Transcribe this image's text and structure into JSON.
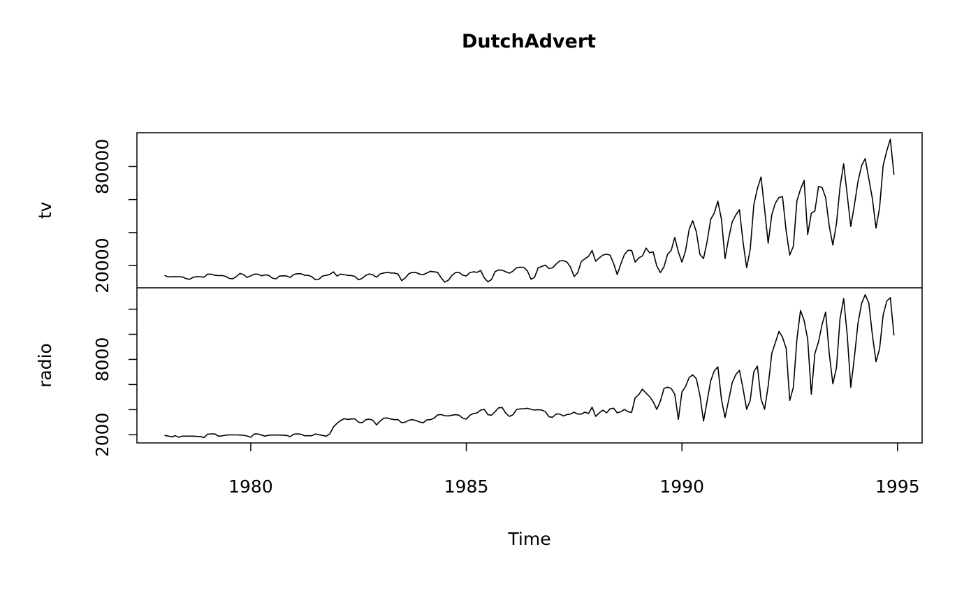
{
  "chart_data": {
    "type": "line",
    "title": "DutchAdvert",
    "xlabel": "Time",
    "start": [
      1978,
      1
    ],
    "frequency": 12,
    "xlim": [
      1977.36,
      1995.57
    ],
    "x_ticks": [
      1980,
      1985,
      1990,
      1995
    ],
    "x_tick_labels": [
      "1980",
      "1985",
      "1990",
      "1995"
    ],
    "grid": false,
    "legend": "none",
    "line_color": "#000000",
    "panels": [
      {
        "ylabel": "tv",
        "ylim": [
          6500,
          100500
        ],
        "y_ticks": [
          20000,
          40000,
          60000,
          80000
        ],
        "y_tick_labels": [
          {
            "value": 20000,
            "text": "20000"
          },
          {
            "value": 80000,
            "text": "80000"
          }
        ],
        "values": [
          14080,
          13100,
          13230,
          13230,
          13230,
          13100,
          12100,
          11670,
          12940,
          13230,
          13230,
          12940,
          14780,
          14780,
          14080,
          13940,
          13940,
          13500,
          12240,
          11950,
          13370,
          15210,
          14500,
          12800,
          13800,
          14780,
          14780,
          13800,
          14360,
          14080,
          12380,
          11950,
          13650,
          13800,
          13650,
          12800,
          14640,
          15070,
          15070,
          14080,
          14080,
          13230,
          11390,
          11810,
          13650,
          14080,
          14640,
          16200,
          13650,
          14780,
          14500,
          14080,
          13940,
          13370,
          11390,
          12240,
          14080,
          14920,
          14360,
          12940,
          14920,
          15490,
          15910,
          15490,
          15490,
          14780,
          10800,
          12520,
          15070,
          15910,
          15770,
          14780,
          14500,
          15490,
          16480,
          16200,
          15910,
          12520,
          9990,
          11100,
          14080,
          15770,
          15770,
          14220,
          13650,
          15770,
          16200,
          15910,
          17040,
          12520,
          10130,
          11530,
          16340,
          17320,
          17180,
          16200,
          15350,
          16620,
          18730,
          19020,
          18870,
          16760,
          11670,
          12940,
          18590,
          19440,
          20290,
          18170,
          18590,
          20990,
          22820,
          22960,
          22110,
          19020,
          13370,
          15630,
          22540,
          24080,
          25640,
          29160,
          22540,
          24650,
          26340,
          26900,
          26340,
          21100,
          14500,
          21100,
          26800,
          29200,
          29200,
          22100,
          24650,
          25800,
          30600,
          27750,
          28300,
          19700,
          15750,
          19300,
          26800,
          29200,
          37000,
          28200,
          22100,
          28900,
          41850,
          47200,
          40450,
          26800,
          24230,
          34500,
          47900,
          51850,
          59050,
          47900,
          24230,
          36650,
          46500,
          50750,
          53850,
          34500,
          18700,
          29600,
          56800,
          66650,
          73700,
          54250,
          33550,
          50750,
          57800,
          61300,
          61750,
          40850,
          26350,
          31700,
          59200,
          66250,
          71600,
          38750,
          51700,
          53100,
          67950,
          67250,
          61300,
          43700,
          32400,
          45400,
          67650,
          81700,
          62700,
          43700,
          56800,
          70900,
          80600,
          84850,
          72600,
          60600,
          42700,
          55000,
          80600,
          89500,
          96560,
          75000
        ]
      },
      {
        "ylabel": "radio",
        "ylim": [
          1350,
          13700
        ],
        "y_ticks": [
          2000,
          4000,
          6000,
          8000,
          10000,
          12000
        ],
        "y_tick_labels": [
          {
            "value": 2000,
            "text": "2000"
          },
          {
            "value": 8000,
            "text": "8000"
          }
        ],
        "values": [
          1945,
          1900,
          1833,
          1925,
          1800,
          1890,
          1890,
          1890,
          1890,
          1870,
          1860,
          1780,
          2050,
          2060,
          2070,
          1890,
          1910,
          1970,
          1990,
          1990,
          1990,
          1980,
          1960,
          1900,
          1800,
          2070,
          2060,
          1980,
          1890,
          1970,
          1980,
          1980,
          1980,
          1970,
          1945,
          1850,
          2050,
          2070,
          2040,
          1925,
          1925,
          1925,
          2070,
          2000,
          1945,
          1890,
          2070,
          2630,
          2910,
          3130,
          3280,
          3220,
          3260,
          3260,
          3000,
          2950,
          3200,
          3240,
          3150,
          2780,
          3090,
          3320,
          3335,
          3250,
          3200,
          3200,
          2960,
          3000,
          3150,
          3200,
          3130,
          3020,
          2950,
          3185,
          3200,
          3320,
          3580,
          3610,
          3520,
          3500,
          3560,
          3595,
          3560,
          3320,
          3240,
          3560,
          3690,
          3740,
          3965,
          4020,
          3595,
          3560,
          3835,
          4150,
          4165,
          3690,
          3465,
          3595,
          4020,
          4060,
          4075,
          4110,
          4020,
          3965,
          4000,
          3965,
          3835,
          3430,
          3390,
          3650,
          3650,
          3500,
          3610,
          3650,
          3800,
          3650,
          3650,
          3800,
          3690,
          4200,
          3465,
          3740,
          3965,
          3740,
          4060,
          4113,
          3742,
          3835,
          4020,
          3835,
          3780,
          4947,
          5206,
          5632,
          5318,
          5040,
          4631,
          4020,
          4669,
          5688,
          5781,
          5688,
          5225,
          3223,
          5410,
          5836,
          6559,
          6763,
          6466,
          5133,
          3093,
          4669,
          6281,
          7078,
          7412,
          4798,
          3371,
          4761,
          6152,
          6800,
          7134,
          5688,
          4020,
          4724,
          7023,
          7467,
          4854,
          4020,
          5873,
          8468,
          9339,
          10229,
          9767,
          8876,
          4724,
          5781,
          9617,
          11897,
          11101,
          9617,
          5225,
          8468,
          9395,
          10785,
          11769,
          8468,
          6059,
          7321,
          11248,
          12842,
          9951,
          5781,
          8190,
          10877,
          12453,
          13157,
          12490,
          9951,
          7819,
          8839,
          11526,
          12638,
          12916,
          9914
        ]
      }
    ]
  }
}
